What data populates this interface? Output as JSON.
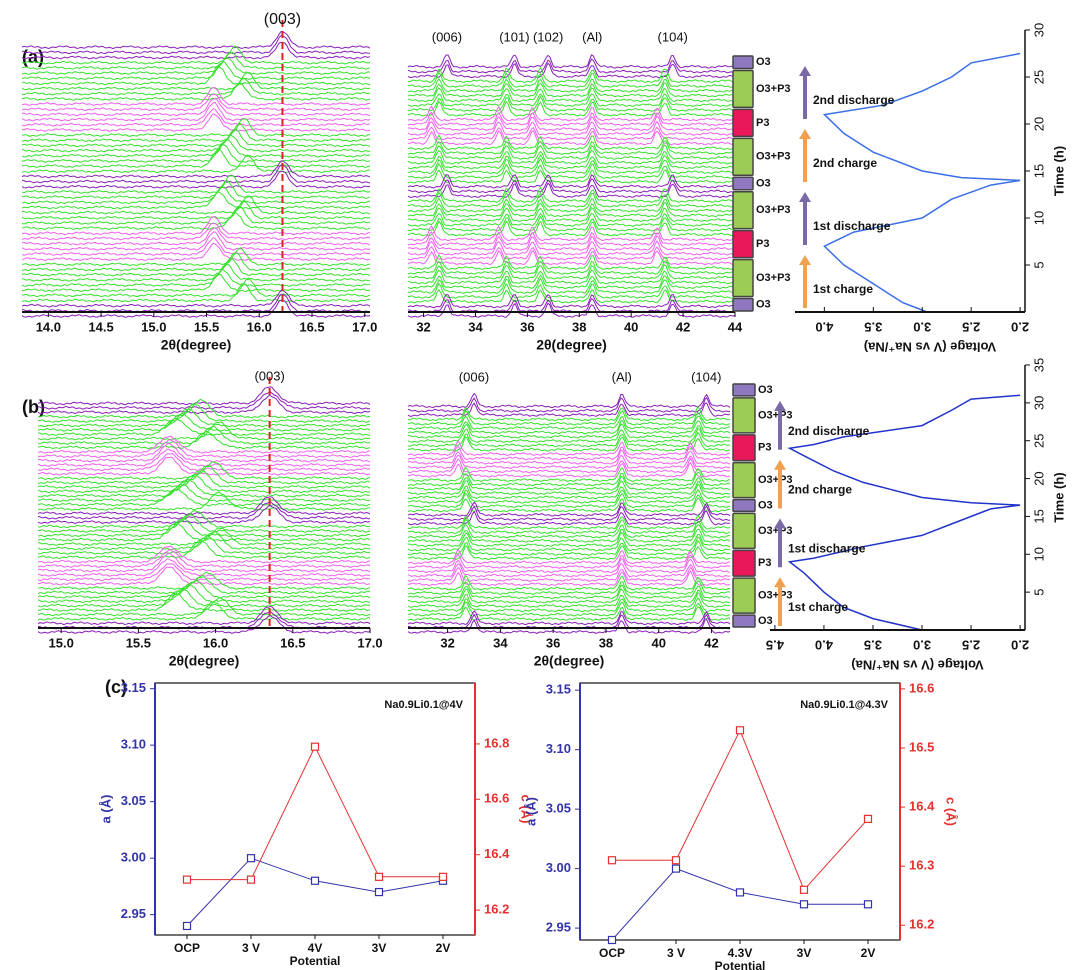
{
  "panel_labels": [
    "(a)",
    "(b)",
    "(c)"
  ],
  "chart_data": [
    {
      "type": "waterfall",
      "xlabel": "2θ(degree)",
      "xlim": [
        13.75,
        17.05
      ],
      "xticks": [
        {
          "value": 14,
          "label": "14.0"
        },
        14.5,
        {
          "value": 15,
          "label": "15.0"
        },
        15.5,
        {
          "value": 16,
          "label": "16.0"
        },
        16.5,
        {
          "value": 17,
          "label": "17.0"
        }
      ],
      "annotations": [
        {
          "text": "(003)",
          "x": 16.22
        }
      ],
      "reference_line": 16.22
    },
    {
      "type": "waterfall",
      "xlabel": "2θ(degree)",
      "xlim": [
        31.4,
        44
      ],
      "xticks": [
        32,
        34,
        36,
        38,
        40,
        42,
        44
      ],
      "annotations": [
        {
          "text": "(006)",
          "x": 32.9
        },
        {
          "text": "(101)",
          "x": 35.5
        },
        {
          "text": "(102)",
          "x": 36.8
        },
        {
          "text": "(Al)",
          "x": 38.5
        },
        {
          "text": "(104)",
          "x": 41.6
        }
      ]
    },
    {
      "type": "phase_bar",
      "labels": [
        "O3",
        "O3+P3",
        "P3",
        "O3+P3",
        "O3",
        "O3+P3",
        "P3",
        "O3+P3",
        "O3"
      ]
    },
    {
      "type": "line",
      "xlabel": "Voltage (V vs Na⁺/Na)",
      "ylabel": "Time (h)",
      "color": "#3a6ee8",
      "xlim": [
        4.3,
        1.95
      ],
      "xticks": [
        {
          "value": 4,
          "label": "4.0"
        },
        3.5,
        {
          "value": 3,
          "label": "3.0"
        },
        2.5,
        {
          "value": 2,
          "label": "2.0"
        }
      ],
      "ylim": [
        0,
        30
      ],
      "yticks": [
        5,
        10,
        15,
        20,
        25,
        30
      ],
      "x": [
        2.95,
        3.2,
        3.5,
        3.8,
        4.0,
        3.7,
        3.0,
        2.7,
        2.3,
        2.0,
        2.6,
        3.0,
        3.5,
        3.8,
        4.0,
        3.4,
        3.0,
        2.7,
        2.5,
        2.0
      ],
      "values": [
        0,
        1,
        3,
        5,
        7,
        8.5,
        10,
        12,
        13.5,
        14,
        14.3,
        15,
        17,
        19,
        21,
        22,
        23.5,
        25,
        26.5,
        27.5
      ],
      "annotations": [
        "1st charge",
        "1st discharge",
        "2nd charge",
        "2nd discharge"
      ]
    },
    {
      "type": "waterfall",
      "xlabel": "2θ(degree)",
      "xlim": [
        14.85,
        17.0
      ],
      "xticks": [
        {
          "value": 15,
          "label": "15.0"
        },
        15.5,
        {
          "value": 16,
          "label": "16.0"
        },
        16.5,
        {
          "value": 17,
          "label": "17.0"
        }
      ],
      "annotations": [
        {
          "text": "(003)",
          "x": 16.35
        }
      ],
      "reference_line": 16.35
    },
    {
      "type": "waterfall",
      "xlabel": "2θ(degree)",
      "xlim": [
        30.5,
        42.7
      ],
      "xticks": [
        32,
        34,
        36,
        38,
        40,
        42
      ],
      "annotations": [
        {
          "text": "(006)",
          "x": 33
        },
        {
          "text": "(Al)",
          "x": 38.6
        },
        {
          "text": "(104)",
          "x": 41.8
        }
      ]
    },
    {
      "type": "phase_bar",
      "labels": [
        "O3",
        "O3+P3",
        "P3",
        "O3+P3",
        "O3",
        "O3+P3",
        "P3",
        "O3+P3",
        "O3"
      ]
    },
    {
      "type": "line",
      "xlabel": "Voltage (V vs Na⁺/Na)",
      "ylabel": "Time (h)",
      "color": "#2233cc",
      "xlim": [
        4.55,
        1.95
      ],
      "xticks": [
        4.5,
        {
          "value": 4,
          "label": "4.0"
        },
        3.5,
        {
          "value": 3,
          "label": "3.0"
        },
        2.5,
        {
          "value": 2,
          "label": "2.0"
        }
      ],
      "ylim": [
        0,
        35
      ],
      "yticks": [
        5,
        10,
        15,
        20,
        25,
        30,
        35
      ],
      "x": [
        3.0,
        3.5,
        3.8,
        4.0,
        4.2,
        4.35,
        4.1,
        3.6,
        3.0,
        2.7,
        2.3,
        2.0,
        2.5,
        3.0,
        3.6,
        3.9,
        4.2,
        4.35,
        4.1,
        3.8,
        3.0,
        2.7,
        2.5,
        2.0
      ],
      "values": [
        0,
        1.5,
        3,
        5,
        7.5,
        9,
        9.5,
        11,
        12.5,
        14,
        16,
        16.5,
        16.8,
        17.5,
        19.5,
        21,
        23,
        24,
        24.5,
        25.5,
        27,
        29,
        30.5,
        31
      ],
      "annotations": [
        "1st charge",
        "1st discharge",
        "2nd charge",
        "2nd discharge"
      ]
    },
    {
      "type": "dual_line",
      "xlabel": "Potential",
      "ylabel": "a (Å)",
      "y2label": "c (Å)",
      "annotation": "Na0.9Li0.1@4V",
      "categories": [
        "OCP",
        "3 V",
        "4V",
        "3V",
        "2V"
      ],
      "ylim": [
        2.932,
        3.155
      ],
      "yticks": [
        2.95,
        {
          "value": 3,
          "label": "3.00"
        },
        3.05,
        {
          "value": 3.1,
          "label": "3.10"
        },
        3.15
      ],
      "y2lim": [
        16.11,
        17.02
      ],
      "y2ticks": [
        16.2,
        16.4,
        16.6,
        16.8
      ],
      "series": [
        {
          "color": "#3333aa",
          "values": [
            2.94,
            3.0,
            2.98,
            2.97,
            2.98
          ]
        },
        {
          "color": "#e53030",
          "axis": "y2",
          "values": [
            16.31,
            16.31,
            16.79,
            16.32,
            16.32
          ]
        }
      ]
    },
    {
      "type": "dual_line",
      "xlabel": "Potential",
      "ylabel": "a (Å)",
      "y2label": "c (Å)",
      "annotation": "Na0.9Li0.1@4.3V",
      "categories": [
        "OCP",
        "3 V",
        "4.3V",
        "3V",
        "2V"
      ],
      "ylim": [
        2.94,
        3.156
      ],
      "yticks": [
        2.95,
        {
          "value": 3,
          "label": "3.00"
        },
        3.05,
        {
          "value": 3.1,
          "label": "3.10"
        },
        3.15
      ],
      "y2lim": [
        16.175,
        16.61
      ],
      "y2ticks": [
        16.2,
        16.3,
        16.4,
        16.5,
        16.6
      ],
      "series": [
        {
          "color": "#3333aa",
          "values": [
            2.94,
            3.0,
            2.98,
            2.97,
            2.97
          ]
        },
        {
          "color": "#e53030",
          "axis": "y2",
          "values": [
            16.31,
            16.31,
            16.53,
            16.26,
            16.38
          ]
        }
      ]
    }
  ]
}
